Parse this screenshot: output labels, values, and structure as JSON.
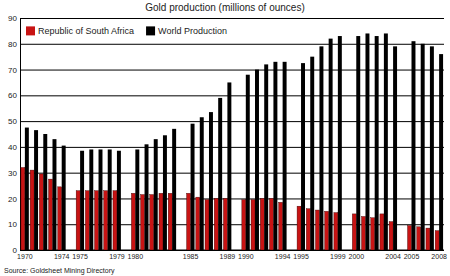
{
  "chart_data": {
    "type": "bar",
    "title": "Gold production (millions of ounces)",
    "categories": [
      "1970",
      null,
      null,
      null,
      "1974",
      null,
      "1975",
      null,
      null,
      null,
      "1979",
      null,
      "1980",
      null,
      null,
      null,
      null,
      null,
      "1985",
      null,
      null,
      null,
      "1989",
      null,
      "1990",
      null,
      null,
      null,
      "1994",
      null,
      "1995",
      null,
      null,
      null,
      "1999",
      null,
      "2000",
      null,
      null,
      null,
      "2004",
      null,
      "2005",
      null,
      null,
      "2008"
    ],
    "series": [
      {
        "name": "Republic of South Africa",
        "color": "#c81414",
        "values": [
          32,
          31,
          29.5,
          27.5,
          24.5,
          null,
          23,
          23,
          23,
          23,
          23,
          null,
          22,
          21.5,
          21.5,
          22,
          22,
          null,
          22,
          20.5,
          19.5,
          20,
          20,
          null,
          19.5,
          19.5,
          20,
          20,
          18.5,
          null,
          17,
          16,
          15.5,
          15,
          14.5,
          null,
          14,
          13,
          12.5,
          14,
          11,
          null,
          9.5,
          9,
          8.5,
          7.5
        ]
      },
      {
        "name": "World Production",
        "color": "#000000",
        "values": [
          47.5,
          46.5,
          45,
          43,
          40.5,
          null,
          38.5,
          39,
          39,
          39,
          38.5,
          null,
          39,
          41,
          43,
          44.5,
          47,
          null,
          49,
          51.5,
          53.5,
          59,
          65,
          null,
          68,
          70,
          72,
          73,
          73,
          null,
          72.5,
          75,
          79,
          82,
          83,
          null,
          83,
          84,
          83,
          84,
          79,
          null,
          81,
          80,
          79,
          76
        ]
      }
    ],
    "ylim": [
      0,
      90
    ],
    "yticks": [
      0,
      10,
      20,
      30,
      40,
      50,
      60,
      70,
      80,
      90
    ],
    "grid": true,
    "legend": "top-left",
    "source": "Source: Goldsheet Mining Directory"
  }
}
